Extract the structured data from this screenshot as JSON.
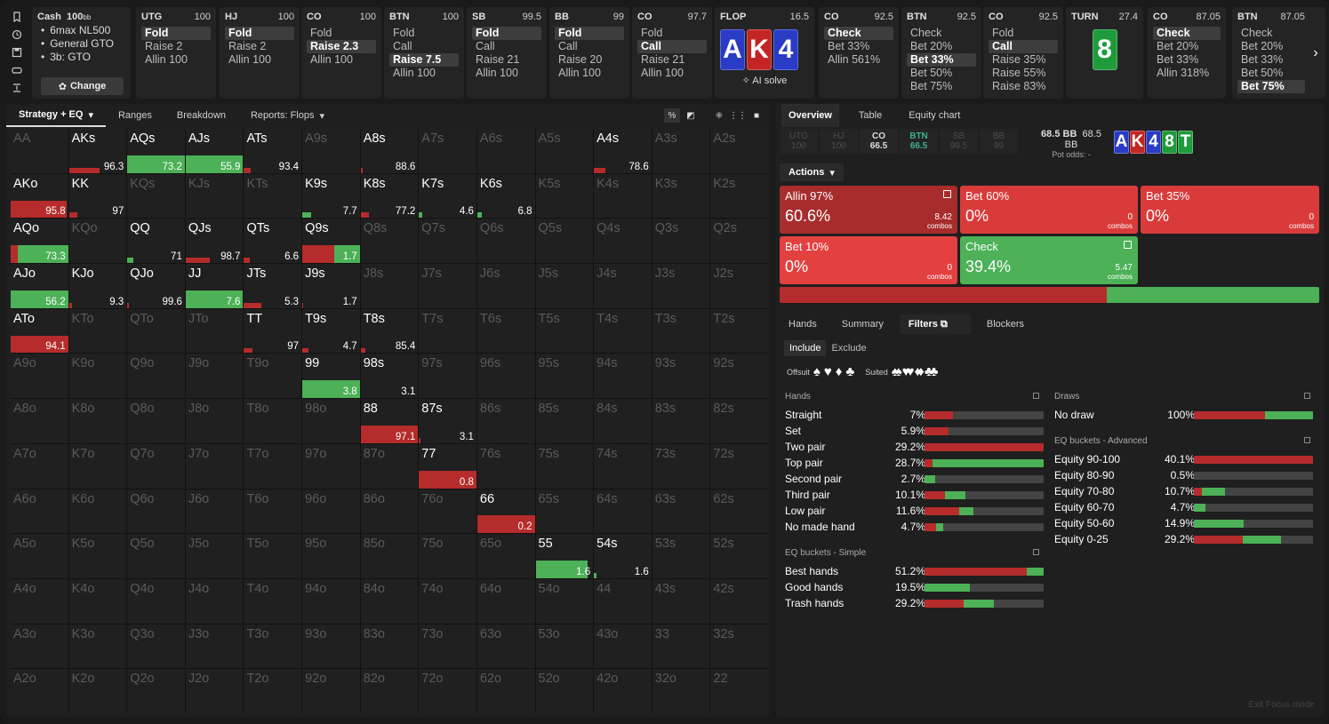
{
  "game": {
    "title": "Cash",
    "stack": "100",
    "stack_unit": "bb",
    "info": [
      "6max NL500",
      "General GTO",
      "3b: GTO"
    ],
    "change_label": "Change"
  },
  "history": [
    {
      "pos": "UTG",
      "stack": "100",
      "actions": [
        "Fold",
        "Raise 2",
        "Allin 100"
      ],
      "selected": 0
    },
    {
      "pos": "HJ",
      "stack": "100",
      "actions": [
        "Fold",
        "Raise 2",
        "Allin 100"
      ],
      "selected": 0
    },
    {
      "pos": "CO",
      "stack": "100",
      "actions": [
        "Fold",
        "Raise 2.3",
        "Allin 100"
      ],
      "selected": 1
    },
    {
      "pos": "BTN",
      "stack": "100",
      "actions": [
        "Fold",
        "Call",
        "Raise 7.5",
        "Allin 100"
      ],
      "selected": 2
    },
    {
      "pos": "SB",
      "stack": "99.5",
      "actions": [
        "Fold",
        "Call",
        "Raise 21",
        "Allin 100"
      ],
      "selected": 0
    },
    {
      "pos": "BB",
      "stack": "99",
      "actions": [
        "Fold",
        "Call",
        "Raise 20",
        "Allin 100"
      ],
      "selected": 0
    },
    {
      "pos": "CO",
      "stack": "97.7",
      "actions": [
        "Fold",
        "Call",
        "Raise 21",
        "Allin 100"
      ],
      "selected": 1
    }
  ],
  "flop": {
    "label": "FLOP",
    "pot": "16.5",
    "cards": [
      {
        "r": "A",
        "s": "s"
      },
      {
        "r": "K",
        "s": "h"
      },
      {
        "r": "4",
        "s": "d"
      }
    ],
    "ai_label": "AI solve"
  },
  "history2": [
    {
      "pos": "CO",
      "stack": "92.5",
      "actions": [
        "Check",
        "Bet 33%",
        "Allin 561%"
      ],
      "selected": 0
    },
    {
      "pos": "BTN",
      "stack": "92.5",
      "actions": [
        "Check",
        "Bet 20%",
        "Bet 33%",
        "Bet 50%",
        "Bet 75%"
      ],
      "selected": 2
    },
    {
      "pos": "CO",
      "stack": "92.5",
      "actions": [
        "Fold",
        "Call",
        "Raise 35%",
        "Raise 55%",
        "Raise 83%"
      ],
      "selected": 1
    }
  ],
  "turn": {
    "label": "TURN",
    "pot": "27.4",
    "card": {
      "r": "8",
      "s": "c"
    }
  },
  "history3": [
    {
      "pos": "CO",
      "stack": "87.05",
      "actions": [
        "Check",
        "Bet 20%",
        "Bet 33%",
        "Allin 318%"
      ],
      "selected": 0
    },
    {
      "pos": "BTN",
      "stack": "87.05",
      "actions": [
        "Check",
        "Bet 20%",
        "Bet 33%",
        "Bet 50%",
        "Bet 75%"
      ],
      "selected": 4
    }
  ],
  "left_tabs": [
    "Strategy + EQ",
    "Ranges",
    "Breakdown",
    "Reports: Flops"
  ],
  "grid": {
    "ranks": [
      "A",
      "K",
      "Q",
      "J",
      "T",
      "9",
      "8",
      "7",
      "6",
      "5",
      "4",
      "3",
      "2"
    ],
    "cells": {
      "AKs": {
        "r": 0.53,
        "g": 0,
        "v": "96.3"
      },
      "AQs": {
        "r": 0,
        "g": 1,
        "v": "73.2"
      },
      "AJs": {
        "r": 0,
        "g": 1,
        "v": "55.9"
      },
      "ATs": {
        "r": 0.12,
        "g": 0,
        "v": "93.4"
      },
      "A8s": {
        "r": 0.03,
        "g": 0,
        "v": "88.6"
      },
      "A4s": {
        "r": 0.2,
        "g": 0,
        "v": "78.6"
      },
      "AKo": {
        "r": 0.98,
        "g": 0,
        "v": "95.8"
      },
      "KK": {
        "r": 0.14,
        "g": 0,
        "v": "97"
      },
      "K9s": {
        "r": 0,
        "g": 0.15,
        "v": "7.7"
      },
      "K8s": {
        "r": 0.14,
        "g": 0,
        "v": "77.2"
      },
      "K7s": {
        "r": 0,
        "g": 0.06,
        "v": "4.6"
      },
      "K6s": {
        "r": 0,
        "g": 0.08,
        "v": "6.8"
      },
      "AQo": {
        "r": 0.12,
        "g": 0.88,
        "v": "73.3"
      },
      "QQ": {
        "r": 0,
        "g": 0.1,
        "v": "71"
      },
      "QJs": {
        "r": 0.42,
        "g": 0,
        "v": "98.7"
      },
      "QTs": {
        "r": 0.1,
        "g": 0,
        "v": "6.6"
      },
      "Q9s": {
        "r": 0.55,
        "g": 0.45,
        "v": "1.7"
      },
      "AJo": {
        "r": 0,
        "g": 1,
        "v": "56.2"
      },
      "KJo": {
        "r": 0.05,
        "g": 0,
        "v": "9.3"
      },
      "QJo": {
        "r": 0.02,
        "g": 0,
        "v": "99.6"
      },
      "JJ": {
        "r": 0,
        "g": 1,
        "v": "7.6"
      },
      "JTs": {
        "r": 0.3,
        "g": 0,
        "v": "5.3"
      },
      "J9s": {
        "r": 0.02,
        "g": 0,
        "v": "1.7"
      },
      "ATo": {
        "r": 1,
        "g": 0,
        "v": "94.1"
      },
      "TT": {
        "r": 0.15,
        "g": 0,
        "v": "97"
      },
      "T9s": {
        "r": 0.1,
        "g": 0,
        "v": "4.7"
      },
      "T8s": {
        "r": 0.08,
        "g": 0,
        "v": "85.4"
      },
      "99": {
        "r": 0,
        "g": 1,
        "v": "3.8"
      },
      "98s": {
        "r": 0,
        "g": 0,
        "v": "3.1"
      },
      "88": {
        "r": 1,
        "g": 0,
        "v": "97.1"
      },
      "87s": {
        "r": 0.03,
        "g": 0,
        "v": "3.1"
      },
      "77": {
        "r": 1,
        "g": 0,
        "v": "0.8"
      },
      "66": {
        "r": 1,
        "g": 0,
        "v": "0.2"
      },
      "55": {
        "r": 0,
        "g": 0.9,
        "v": "1.6"
      },
      "54s": {
        "r": 0,
        "g": 0.04,
        "v": "1.6"
      }
    }
  },
  "right_tabs": [
    "Overview",
    "Table",
    "Equity chart"
  ],
  "positions": [
    {
      "name": "UTG",
      "stack": "100",
      "state": "out"
    },
    {
      "name": "HJ",
      "stack": "100",
      "state": "out"
    },
    {
      "name": "CO",
      "stack": "66.5",
      "state": "cur"
    },
    {
      "name": "BTN",
      "stack": "66.5",
      "state": "hero"
    },
    {
      "name": "SB",
      "stack": "99.5",
      "state": "out"
    },
    {
      "name": "BB",
      "stack": "99",
      "state": "out"
    }
  ],
  "pot": {
    "main": "68.5 BB",
    "eff": "68.5 BB",
    "odds": "Pot odds:  -"
  },
  "board": [
    {
      "r": "A",
      "s": "s"
    },
    {
      "r": "K",
      "s": "h"
    },
    {
      "r": "4",
      "s": "d"
    },
    {
      "r": "8",
      "s": "c"
    },
    {
      "r": "T",
      "s": "c"
    }
  ],
  "actions_label": "Actions",
  "strategy": [
    {
      "label": "Allin 97%",
      "pct": "60.6%",
      "combos": "8.42",
      "color": "#a82c2c"
    },
    {
      "label": "Bet 60%",
      "pct": "0%",
      "combos": "0",
      "color": "#d93b3b"
    },
    {
      "label": "Bet 35%",
      "pct": "0%",
      "combos": "0",
      "color": "#d93b3b"
    },
    {
      "label": "Bet 10%",
      "pct": "0%",
      "combos": "0",
      "color": "#e34040"
    },
    {
      "label": "Check",
      "pct": "39.4%",
      "combos": "5.47",
      "color": "#4cb157"
    }
  ],
  "combos_word": "combos",
  "strat_bar": [
    0.606,
    0.394
  ],
  "sub_tabs": [
    "Hands",
    "Summary",
    "Filters",
    "Blockers"
  ],
  "filter_mode": [
    "Include",
    "Exclude"
  ],
  "suits_labels": {
    "offsuit": "Offsuit",
    "suited": "Suited"
  },
  "hands_title": "Hands",
  "hands": [
    {
      "label": "Straight",
      "pct": "7%",
      "r": 0.24,
      "g": 0
    },
    {
      "label": "Set",
      "pct": "5.9%",
      "r": 0.2,
      "g": 0
    },
    {
      "label": "Two pair",
      "pct": "29.2%",
      "r": 1,
      "g": 0
    },
    {
      "label": "Top pair",
      "pct": "28.7%",
      "r": 0.07,
      "g": 0.93
    },
    {
      "label": "Second pair",
      "pct": "2.7%",
      "r": 0,
      "g": 0.09
    },
    {
      "label": "Third pair",
      "pct": "10.1%",
      "r": 0.17,
      "g": 0.17
    },
    {
      "label": "Low pair",
      "pct": "11.6%",
      "r": 0.29,
      "g": 0.12
    },
    {
      "label": "No made hand",
      "pct": "4.7%",
      "r": 0.1,
      "g": 0.06
    }
  ],
  "eq_simple_title": "EQ buckets - Simple",
  "eq_simple": [
    {
      "label": "Best hands",
      "pct": "51.2%",
      "r": 0.86,
      "g": 0.14
    },
    {
      "label": "Good hands",
      "pct": "19.5%",
      "r": 0,
      "g": 0.38
    },
    {
      "label": "Trash hands",
      "pct": "29.2%",
      "r": 0.33,
      "g": 0.25
    }
  ],
  "draws_title": "Draws",
  "draws": [
    {
      "label": "No draw",
      "pct": "100%",
      "r": 0.6,
      "g": 0.4
    }
  ],
  "eq_adv_title": "EQ buckets - Advanced",
  "eq_adv": [
    {
      "label": "Equity 90-100",
      "pct": "40.1%",
      "r": 1,
      "g": 0
    },
    {
      "label": "Equity 80-90",
      "pct": "0.5%",
      "r": 0,
      "g": 0
    },
    {
      "label": "Equity 70-80",
      "pct": "10.7%",
      "r": 0.07,
      "g": 0.19
    },
    {
      "label": "Equity 60-70",
      "pct": "4.7%",
      "r": 0,
      "g": 0.1
    },
    {
      "label": "Equity 50-60",
      "pct": "14.9%",
      "r": 0,
      "g": 0.42
    },
    {
      "label": "Equity 0-25",
      "pct": "29.2%",
      "r": 0.41,
      "g": 0.32
    }
  ],
  "exit_focus": "Exit Focus mode"
}
